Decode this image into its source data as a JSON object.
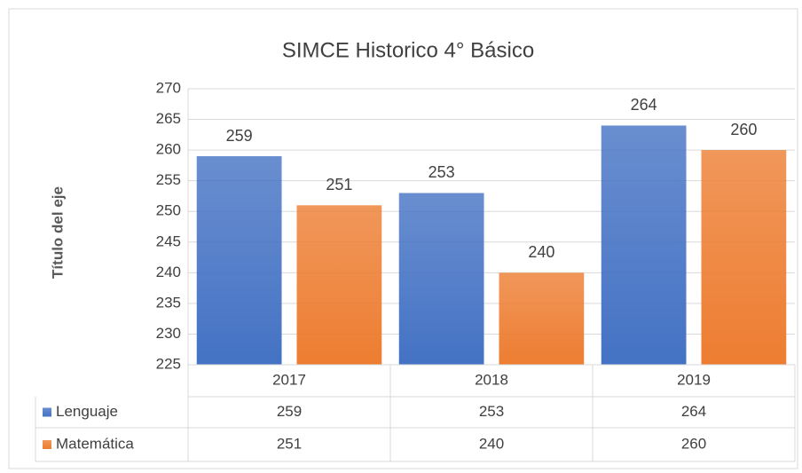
{
  "chart_data": {
    "type": "bar",
    "title": "SIMCE Historico 4° Básico",
    "y_label": "Título del eje",
    "categories": [
      "2017",
      "2018",
      "2019"
    ],
    "series": [
      {
        "name": "Lenguaje",
        "color": "#4472c4",
        "values": [
          259,
          253,
          264
        ]
      },
      {
        "name": "Matemática",
        "color": "#ed7d31",
        "values": [
          251,
          240,
          260
        ]
      }
    ],
    "ylim": [
      225,
      270
    ],
    "yticks": [
      225,
      230,
      235,
      240,
      245,
      250,
      255,
      260,
      265,
      270
    ],
    "grid": true
  }
}
